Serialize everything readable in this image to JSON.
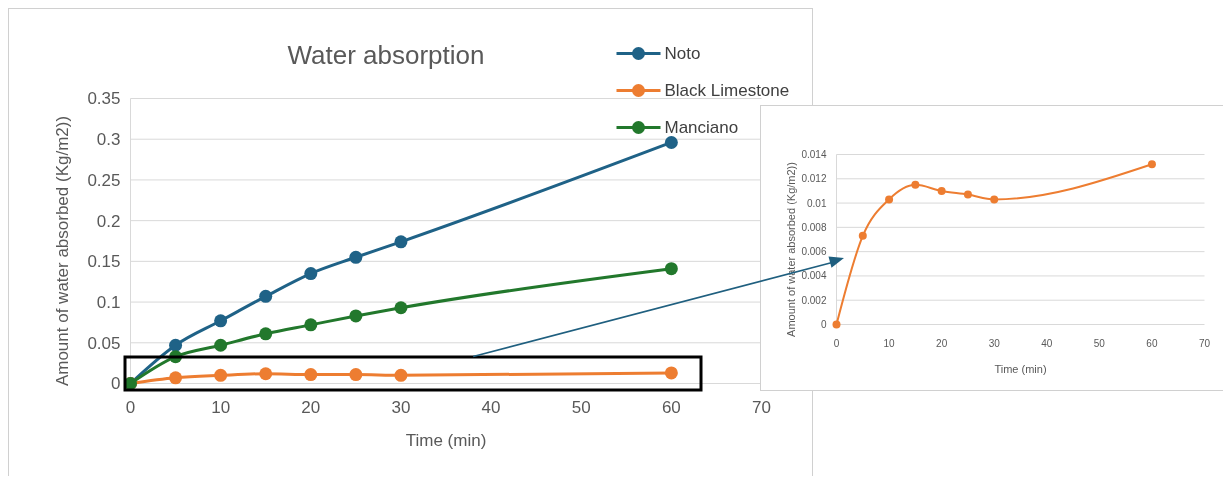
{
  "chart_data": [
    {
      "type": "line",
      "title": "Water absorption",
      "xlabel": "Time (min)",
      "ylabel": "Amount of water absorbed (Kg/m2))",
      "x": [
        0,
        5,
        10,
        15,
        20,
        25,
        30,
        60
      ],
      "series": [
        {
          "name": "Noto",
          "color": "#1f6287",
          "values": [
            0,
            0.047,
            0.077,
            0.107,
            0.135,
            0.155,
            0.174,
            0.296
          ]
        },
        {
          "name": "Black Limestone",
          "color": "#ed7d31",
          "values": [
            0,
            0.007,
            0.01,
            0.012,
            0.011,
            0.011,
            0.01,
            0.013
          ]
        },
        {
          "name": "Manciano",
          "color": "#22782c",
          "values": [
            0,
            0.033,
            0.047,
            0.061,
            0.072,
            0.083,
            0.093,
            0.141
          ]
        }
      ],
      "xlim": [
        0,
        70
      ],
      "xticks": [
        0,
        10,
        20,
        30,
        40,
        50,
        60,
        70
      ],
      "ylim": [
        0,
        0.35
      ],
      "yticks": [
        0,
        0.05,
        0.1,
        0.15,
        0.2,
        0.25,
        0.3,
        0.35
      ],
      "grid": "y",
      "legend": "top right",
      "marker": "circle",
      "line_style": "solid"
    },
    {
      "type": "line",
      "xlabel": "Time (min)",
      "ylabel": "Amount of water absorbed (Kg/m2))",
      "x": [
        0,
        5,
        10,
        15,
        20,
        25,
        30,
        60
      ],
      "series": [
        {
          "color": "#ed7d31",
          "values": [
            0,
            0.0073,
            0.0103,
            0.0115,
            0.011,
            0.0107,
            0.0103,
            0.0132
          ]
        }
      ],
      "xlim": [
        0,
        70
      ],
      "xticks": [
        0,
        10,
        20,
        30,
        40,
        50,
        60,
        70
      ],
      "ylim": [
        0,
        0.014
      ],
      "yticks": [
        0,
        0.002,
        0.004,
        0.006,
        0.008,
        0.01,
        0.012,
        0.014
      ],
      "grid": "y",
      "marker": "circle",
      "line_style": "solid"
    }
  ]
}
